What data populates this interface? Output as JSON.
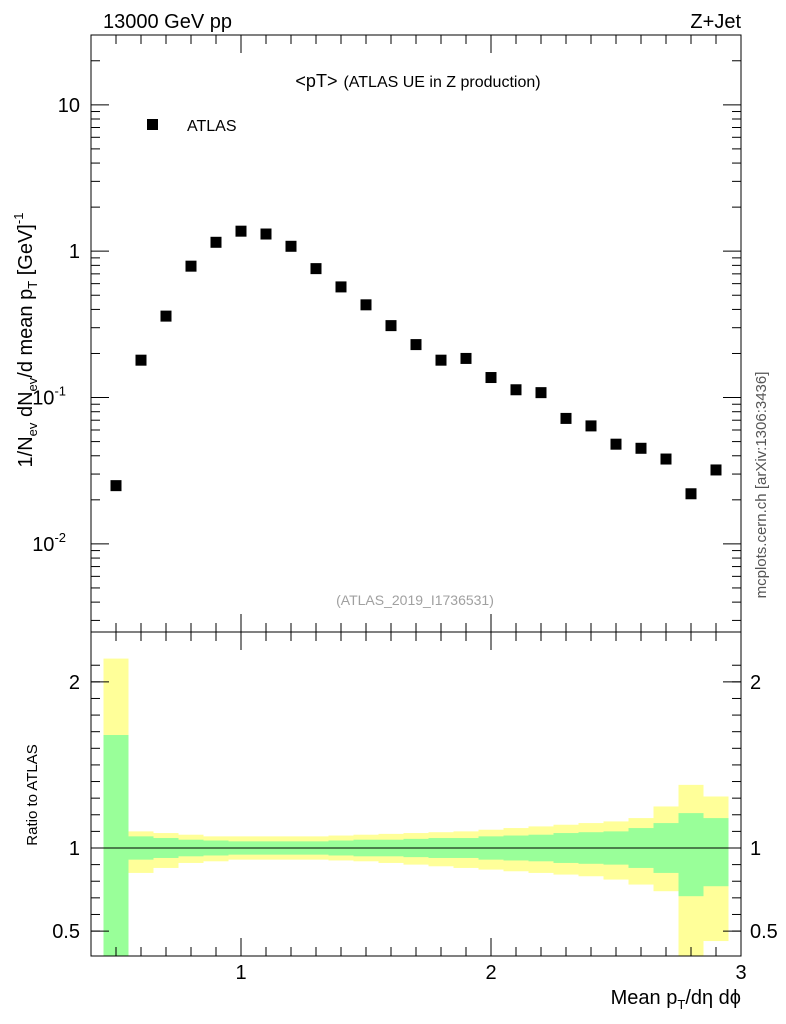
{
  "header": {
    "left": "13000 GeV pp",
    "right": "Z+Jet"
  },
  "plot_title": {
    "main": "<pT>",
    "sub": "(ATLAS UE in Z production)"
  },
  "watermark": "(ATLAS_2019_I1736531)",
  "side_credit": "mcplots.cern.ch [arXiv:1306:3436]",
  "colors": {
    "yellow_band": "#ffff99",
    "green_band": "#99ff99",
    "marker": "#000000",
    "watermark": "#a0a0a0"
  },
  "chart_data": [
    {
      "type": "scatter",
      "panel": "main",
      "y_scale": "log",
      "ylim": [
        0.0025,
        30
      ],
      "xlim": [
        0.4,
        3.0
      ],
      "ylabel": {
        "text": "1/N",
        "sub1": "ev",
        "mid": " dN",
        "sub2": "ev",
        "mid2": "/d mean p",
        "sub3": "T",
        "tail": " [GeV]",
        "sup": "-1"
      },
      "y_ticks": [
        {
          "value": 10,
          "label": "10"
        },
        {
          "value": 1,
          "label": "1"
        },
        {
          "value": 0.1,
          "label": "10",
          "sup": "-1"
        },
        {
          "value": 0.01,
          "label": "10",
          "sup": "-2"
        }
      ],
      "legend": {
        "position": "top-left",
        "entries": [
          "ATLAS"
        ]
      },
      "series": [
        {
          "name": "ATLAS",
          "marker": "square",
          "points": [
            {
              "x": 0.5,
              "y": 0.025
            },
            {
              "x": 0.6,
              "y": 0.18
            },
            {
              "x": 0.7,
              "y": 0.36
            },
            {
              "x": 0.8,
              "y": 0.79
            },
            {
              "x": 0.9,
              "y": 1.15
            },
            {
              "x": 1.0,
              "y": 1.37
            },
            {
              "x": 1.1,
              "y": 1.31
            },
            {
              "x": 1.2,
              "y": 1.08
            },
            {
              "x": 1.3,
              "y": 0.76
            },
            {
              "x": 1.4,
              "y": 0.57
            },
            {
              "x": 1.5,
              "y": 0.43
            },
            {
              "x": 1.6,
              "y": 0.31
            },
            {
              "x": 1.7,
              "y": 0.23
            },
            {
              "x": 1.8,
              "y": 0.18
            },
            {
              "x": 1.9,
              "y": 0.185
            },
            {
              "x": 2.0,
              "y": 0.137
            },
            {
              "x": 2.1,
              "y": 0.113
            },
            {
              "x": 2.2,
              "y": 0.108
            },
            {
              "x": 2.3,
              "y": 0.072
            },
            {
              "x": 2.4,
              "y": 0.064
            },
            {
              "x": 2.5,
              "y": 0.048
            },
            {
              "x": 2.6,
              "y": 0.045
            },
            {
              "x": 2.7,
              "y": 0.038
            },
            {
              "x": 2.8,
              "y": 0.022
            },
            {
              "x": 2.9,
              "y": 0.032
            }
          ]
        }
      ]
    },
    {
      "type": "area",
      "panel": "ratio",
      "ylabel": "Ratio to ATLAS",
      "xlabel": {
        "text": "Mean p",
        "sub": "T",
        "tail": "/dη dϕ"
      },
      "xlim": [
        0.4,
        3.0
      ],
      "ylim": [
        0.35,
        2.3
      ],
      "x_ticks": [
        {
          "value": 1,
          "label": "1"
        },
        {
          "value": 2,
          "label": "2"
        },
        {
          "value": 3,
          "label": "3"
        }
      ],
      "y_ticks": [
        {
          "value": 0.5,
          "label": "0.5"
        },
        {
          "value": 1,
          "label": "1"
        },
        {
          "value": 2,
          "label": "2"
        }
      ],
      "reference_line": 1,
      "bands": {
        "x_edges": [
          0.45,
          0.55,
          0.65,
          0.75,
          0.85,
          0.95,
          1.05,
          1.15,
          1.25,
          1.35,
          1.45,
          1.55,
          1.65,
          1.75,
          1.85,
          1.95,
          2.05,
          2.15,
          2.25,
          2.35,
          2.45,
          2.55,
          2.65,
          2.75,
          2.85,
          2.95
        ],
        "yellow_upper": [
          2.14,
          1.1,
          1.09,
          1.08,
          1.07,
          1.07,
          1.07,
          1.07,
          1.07,
          1.075,
          1.08,
          1.085,
          1.09,
          1.095,
          1.1,
          1.11,
          1.12,
          1.13,
          1.14,
          1.15,
          1.16,
          1.18,
          1.25,
          1.38,
          1.31
        ],
        "yellow_lower": [
          0.35,
          0.85,
          0.88,
          0.91,
          0.92,
          0.93,
          0.93,
          0.93,
          0.93,
          0.925,
          0.92,
          0.91,
          0.9,
          0.89,
          0.88,
          0.87,
          0.86,
          0.85,
          0.84,
          0.83,
          0.81,
          0.78,
          0.74,
          0.35,
          0.44
        ],
        "green_upper": [
          1.68,
          1.07,
          1.06,
          1.05,
          1.045,
          1.04,
          1.04,
          1.04,
          1.04,
          1.045,
          1.05,
          1.05,
          1.055,
          1.06,
          1.06,
          1.07,
          1.075,
          1.08,
          1.09,
          1.095,
          1.1,
          1.12,
          1.15,
          1.21,
          1.18
        ],
        "green_lower": [
          0.35,
          0.93,
          0.94,
          0.95,
          0.955,
          0.96,
          0.96,
          0.96,
          0.96,
          0.955,
          0.95,
          0.95,
          0.945,
          0.94,
          0.94,
          0.93,
          0.925,
          0.92,
          0.91,
          0.905,
          0.9,
          0.88,
          0.85,
          0.71,
          0.77
        ]
      }
    }
  ]
}
